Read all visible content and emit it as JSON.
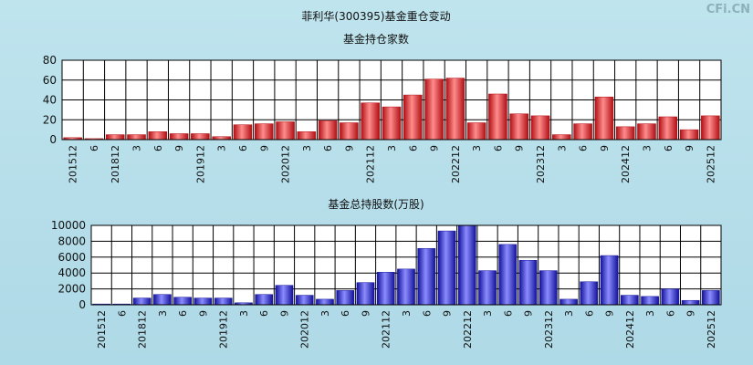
{
  "page": {
    "title": "菲利华(300395)基金重仓变动",
    "watermark": "CFi.CN"
  },
  "chart_data": [
    {
      "type": "bar",
      "title": "基金持仓家数",
      "categories": [
        "201512",
        "6",
        "201812",
        "3",
        "6",
        "9",
        "201912",
        "3",
        "6",
        "9",
        "202012",
        "3",
        "6",
        "9",
        "202112",
        "3",
        "6",
        "9",
        "202212",
        "3",
        "6",
        "9",
        "202312",
        "3",
        "6",
        "9",
        "202412",
        "3",
        "6",
        "9",
        "202512"
      ],
      "values": [
        2,
        1,
        5,
        5,
        8,
        6,
        6,
        3,
        15,
        16,
        18,
        8,
        19,
        17,
        37,
        33,
        45,
        61,
        62,
        17,
        46,
        26,
        24,
        5,
        16,
        43,
        13,
        16,
        23,
        10,
        24
      ],
      "ylim": [
        0,
        80
      ],
      "yticks": [
        0,
        20,
        40,
        60,
        80
      ],
      "color": "#e8242b",
      "grid": true
    },
    {
      "type": "bar",
      "title": "基金总持股数(万股)",
      "categories": [
        "201512",
        "6",
        "201812",
        "3",
        "6",
        "9",
        "201912",
        "3",
        "6",
        "9",
        "202012",
        "3",
        "6",
        "9",
        "202112",
        "3",
        "6",
        "9",
        "202212",
        "3",
        "6",
        "9",
        "202312",
        "3",
        "6",
        "9",
        "202412",
        "3",
        "6",
        "9",
        "202512"
      ],
      "values": [
        100,
        100,
        850,
        1300,
        950,
        850,
        850,
        250,
        1300,
        2450,
        1200,
        700,
        1800,
        2800,
        4100,
        4500,
        7100,
        9300,
        10000,
        4300,
        7600,
        5600,
        4300,
        700,
        2900,
        6200,
        1200,
        1050,
        2000,
        550,
        1800
      ],
      "ylim": [
        0,
        10000
      ],
      "yticks": [
        0,
        2000,
        4000,
        6000,
        8000,
        10000
      ],
      "color": "#2a2ae6",
      "grid": true
    }
  ]
}
